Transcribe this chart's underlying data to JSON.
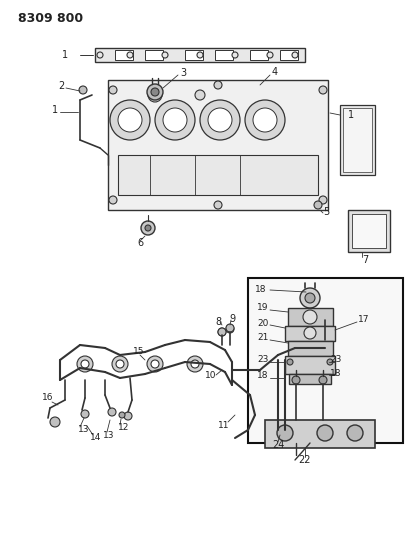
{
  "title": "8309 800",
  "bg_color": "#ffffff",
  "line_color": "#333333",
  "text_color": "#222222",
  "part_labels": {
    "1_gasket": [
      1,
      "1"
    ],
    "2": [
      2,
      "2"
    ],
    "3": [
      3,
      "3"
    ],
    "4": [
      4,
      "4"
    ],
    "5": [
      5,
      "5"
    ],
    "6": [
      6,
      "6"
    ],
    "7": [
      7,
      "7"
    ],
    "8": [
      8,
      "8"
    ],
    "9": [
      9,
      "9"
    ],
    "10": [
      10,
      "10"
    ],
    "11": [
      11,
      "11"
    ],
    "12": [
      12,
      "12"
    ],
    "13a": [
      13,
      "13"
    ],
    "13b": [
      13,
      "13"
    ],
    "14": [
      14,
      "14"
    ],
    "15": [
      15,
      "15"
    ],
    "16": [
      16,
      "16"
    ],
    "17": [
      17,
      "17"
    ],
    "18a": [
      18,
      "18"
    ],
    "18b": [
      18,
      "18"
    ],
    "18c": [
      18,
      "18"
    ],
    "18d": [
      18,
      "18"
    ],
    "19": [
      19,
      "19"
    ],
    "20": [
      20,
      "20"
    ],
    "21": [
      21,
      "21"
    ],
    "22": [
      22,
      "22"
    ],
    "23a": [
      23,
      "23"
    ],
    "23b": [
      23,
      "23"
    ],
    "24": [
      24,
      "24"
    ]
  },
  "figsize": [
    4.1,
    5.33
  ],
  "dpi": 100
}
